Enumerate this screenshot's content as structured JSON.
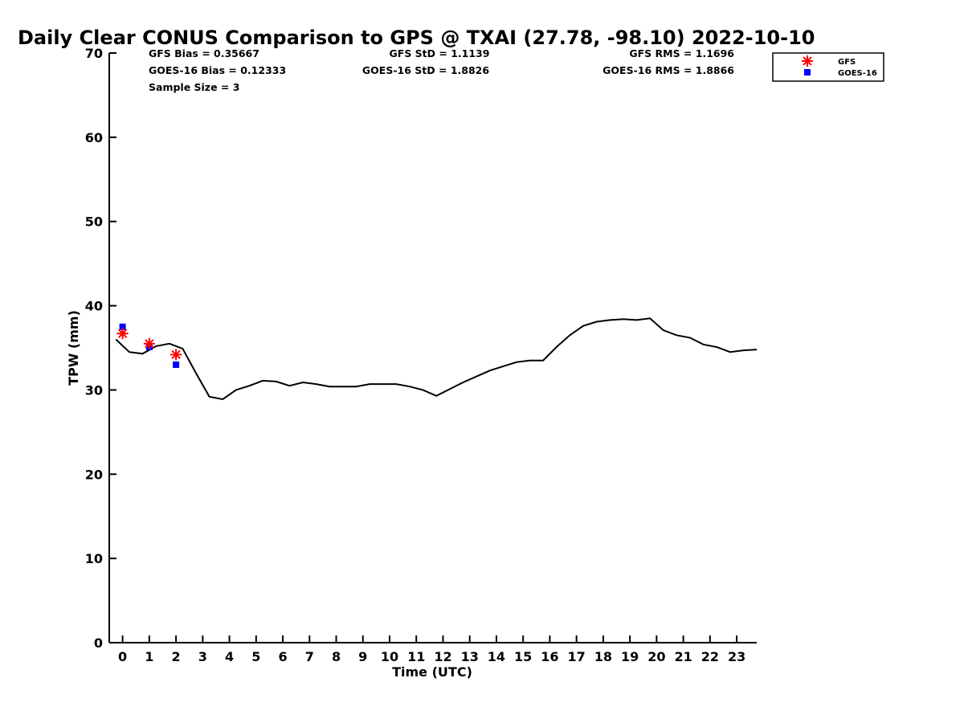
{
  "chart_data": {
    "type": "line",
    "title": "Daily Clear CONUS Comparison to GPS @ TXAI (27.78, -98.10) 2022-10-10",
    "xlabel": "Time (UTC)",
    "ylabel": "TPW (mm)",
    "xlim": [
      -0.5,
      23.75
    ],
    "ylim": [
      0,
      70
    ],
    "x_ticks": [
      0,
      1,
      2,
      3,
      4,
      5,
      6,
      7,
      8,
      9,
      10,
      11,
      12,
      13,
      14,
      15,
      16,
      17,
      18,
      19,
      20,
      21,
      22,
      23
    ],
    "y_ticks": [
      0,
      10,
      20,
      30,
      40,
      50,
      60,
      70
    ],
    "grid": false,
    "legend_position": "top-right",
    "stats": {
      "gfs_bias": "GFS Bias = 0.35667",
      "goes_bias": "GOES-16 Bias = 0.12333",
      "sample_size": "Sample Size = 3",
      "gfs_std": "GFS StD = 1.1139",
      "goes_std": "GOES-16 StD = 1.8826",
      "gfs_rms": "GFS RMS = 1.1696",
      "goes_rms": "GOES-16 RMS = 1.8866"
    },
    "series": [
      {
        "kind": "line",
        "color": "#000000",
        "x": [
          -0.25,
          0.25,
          0.75,
          1.25,
          1.75,
          2.25,
          2.75,
          3.25,
          3.75,
          4.25,
          4.75,
          5.25,
          5.75,
          6.25,
          6.75,
          7.25,
          7.75,
          8.25,
          8.75,
          9.25,
          9.75,
          10.25,
          10.75,
          11.25,
          11.75,
          12.25,
          12.75,
          13.25,
          13.75,
          14.25,
          14.75,
          15.25,
          15.75,
          16.25,
          16.75,
          17.25,
          17.75,
          18.25,
          18.75,
          19.25,
          19.75,
          20.25,
          20.75,
          21.25,
          21.75,
          22.25,
          22.75,
          23.25,
          23.75
        ],
        "values": [
          36.0,
          34.5,
          34.3,
          35.2,
          35.5,
          34.9,
          32.0,
          29.2,
          28.9,
          30.0,
          30.5,
          31.1,
          31.0,
          30.5,
          30.9,
          30.7,
          30.4,
          30.4,
          30.4,
          30.7,
          30.7,
          30.7,
          30.4,
          30.0,
          29.3,
          30.1,
          30.9,
          31.6,
          32.3,
          32.8,
          33.3,
          33.5,
          33.5,
          35.1,
          36.5,
          37.6,
          38.1,
          38.3,
          38.4,
          38.3,
          38.5,
          37.1,
          36.5,
          36.2,
          35.4,
          35.1,
          34.5,
          34.7,
          34.8
        ]
      },
      {
        "name": "GFS",
        "kind": "star",
        "color": "#ff0000",
        "x": [
          0,
          1,
          2
        ],
        "values": [
          36.7,
          35.5,
          34.2
        ]
      },
      {
        "name": "GOES-16",
        "kind": "square",
        "color": "#0000ff",
        "x": [
          0,
          1,
          2
        ],
        "values": [
          37.5,
          35.1,
          33.0
        ]
      }
    ]
  }
}
